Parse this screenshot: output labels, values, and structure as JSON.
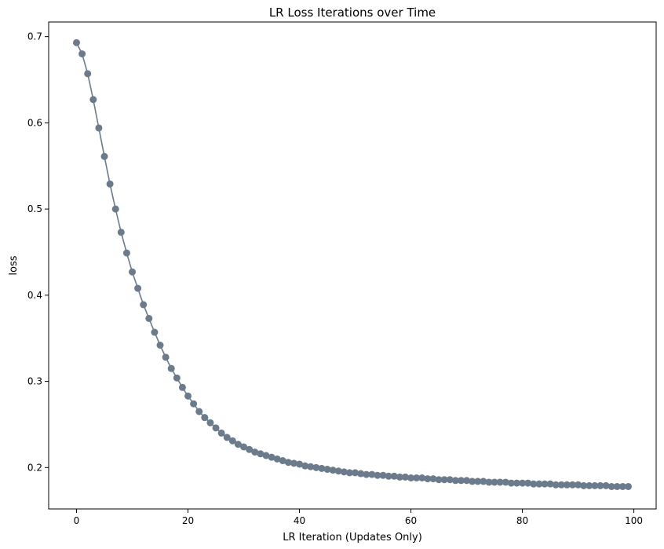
{
  "chart_data": {
    "type": "line",
    "title": "LR Loss Iterations over Time",
    "xlabel": "LR Iteration (Updates Only)",
    "ylabel": "loss",
    "xlim": [
      -5,
      104
    ],
    "ylim": [
      0.152,
      0.717
    ],
    "xticks": [
      0,
      20,
      40,
      60,
      80,
      100
    ],
    "yticks": [
      0.2,
      0.3,
      0.4,
      0.5,
      0.6,
      0.7
    ],
    "xtick_labels": [
      "0",
      "20",
      "40",
      "60",
      "80",
      "100"
    ],
    "ytick_labels": [
      "0.2",
      "0.3",
      "0.4",
      "0.5",
      "0.6",
      "0.7"
    ],
    "grid": false,
    "marker": "circle",
    "series": [
      {
        "color": "#6b7b8c",
        "x": [
          0,
          1,
          2,
          3,
          4,
          5,
          6,
          7,
          8,
          9,
          10,
          11,
          12,
          13,
          14,
          15,
          16,
          17,
          18,
          19,
          20,
          21,
          22,
          23,
          24,
          25,
          26,
          27,
          28,
          29,
          30,
          31,
          32,
          33,
          34,
          35,
          36,
          37,
          38,
          39,
          40,
          41,
          42,
          43,
          44,
          45,
          46,
          47,
          48,
          49,
          50,
          51,
          52,
          53,
          54,
          55,
          56,
          57,
          58,
          59,
          60,
          61,
          62,
          63,
          64,
          65,
          66,
          67,
          68,
          69,
          70,
          71,
          72,
          73,
          74,
          75,
          76,
          77,
          78,
          79,
          80,
          81,
          82,
          83,
          84,
          85,
          86,
          87,
          88,
          89,
          90,
          91,
          92,
          93,
          94,
          95,
          96,
          97,
          98,
          99
        ],
        "values": [
          0.693,
          0.68,
          0.657,
          0.627,
          0.594,
          0.561,
          0.529,
          0.5,
          0.473,
          0.449,
          0.427,
          0.408,
          0.389,
          0.373,
          0.357,
          0.342,
          0.328,
          0.315,
          0.304,
          0.293,
          0.283,
          0.274,
          0.265,
          0.258,
          0.252,
          0.246,
          0.24,
          0.235,
          0.231,
          0.227,
          0.224,
          0.221,
          0.218,
          0.216,
          0.214,
          0.212,
          0.21,
          0.208,
          0.206,
          0.205,
          0.204,
          0.202,
          0.201,
          0.2,
          0.199,
          0.198,
          0.197,
          0.196,
          0.195,
          0.194,
          0.194,
          0.193,
          0.192,
          0.192,
          0.191,
          0.191,
          0.19,
          0.19,
          0.189,
          0.189,
          0.188,
          0.188,
          0.188,
          0.187,
          0.187,
          0.186,
          0.186,
          0.186,
          0.185,
          0.185,
          0.185,
          0.184,
          0.184,
          0.184,
          0.183,
          0.183,
          0.183,
          0.183,
          0.182,
          0.182,
          0.182,
          0.182,
          0.181,
          0.181,
          0.181,
          0.181,
          0.18,
          0.18,
          0.18,
          0.18,
          0.18,
          0.179,
          0.179,
          0.179,
          0.179,
          0.179,
          0.178,
          0.178,
          0.178,
          0.178
        ]
      }
    ]
  }
}
